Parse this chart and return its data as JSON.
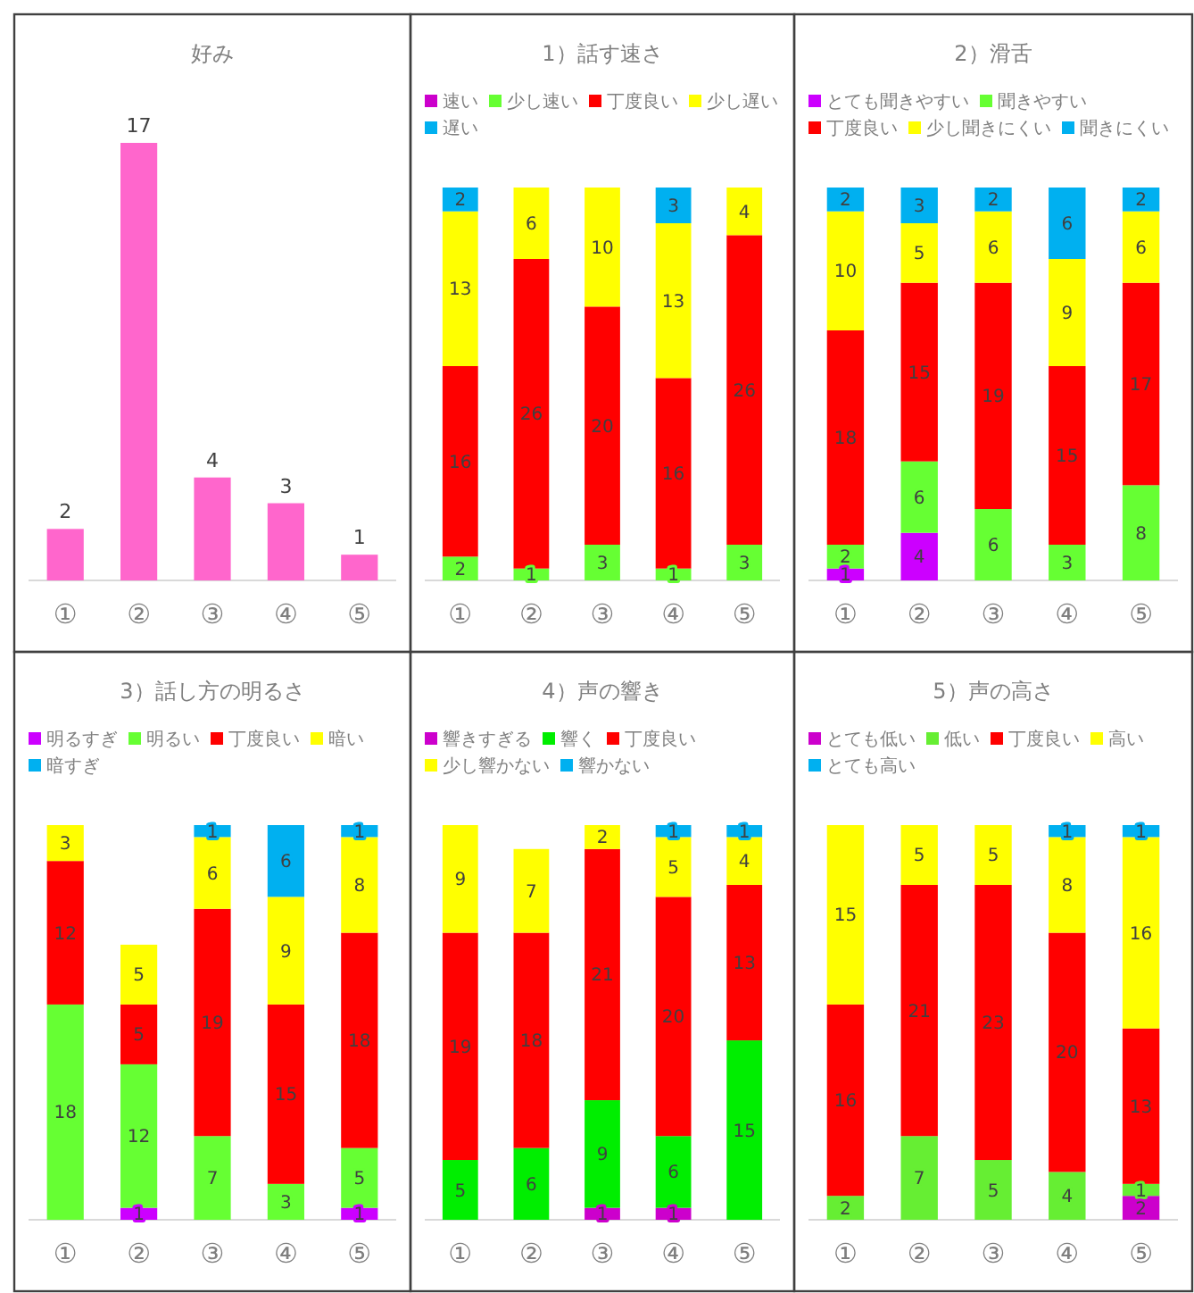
{
  "chart_data": [
    {
      "type": "bar",
      "title": "好み",
      "categories": [
        "①",
        "②",
        "③",
        "④",
        "⑤"
      ],
      "values": [
        2,
        17,
        4,
        3,
        1
      ],
      "color": "#ff66cc",
      "data_labels": true
    },
    {
      "type": "bar",
      "title": "1）話す速さ",
      "categories": [
        "①",
        "②",
        "③",
        "④",
        "⑤"
      ],
      "stacked": true,
      "data_labels": true,
      "legend": "top",
      "series": [
        {
          "name": "速い",
          "color": "#cc00cc",
          "values": [
            null,
            null,
            null,
            null,
            null
          ]
        },
        {
          "name": "少し速い",
          "color": "#66ff33",
          "values": [
            2,
            1,
            3,
            1,
            3
          ]
        },
        {
          "name": "丁度良い",
          "color": "#ff0000",
          "values": [
            16,
            26,
            20,
            16,
            26
          ]
        },
        {
          "name": "少し遅い",
          "color": "#ffff00",
          "values": [
            13,
            6,
            10,
            13,
            4
          ]
        },
        {
          "name": "遅い",
          "color": "#00b0f0",
          "values": [
            2,
            null,
            null,
            3,
            null
          ]
        }
      ]
    },
    {
      "type": "bar",
      "title": "2）滑舌",
      "categories": [
        "①",
        "②",
        "③",
        "④",
        "⑤"
      ],
      "stacked": true,
      "data_labels": true,
      "legend": "top",
      "series": [
        {
          "name": "とても聞きやすい",
          "color": "#cc00ff",
          "values": [
            1,
            4,
            null,
            null,
            null
          ]
        },
        {
          "name": "聞きやすい",
          "color": "#66ff33",
          "values": [
            2,
            6,
            6,
            3,
            8
          ]
        },
        {
          "name": "丁度良い",
          "color": "#ff0000",
          "values": [
            18,
            15,
            19,
            15,
            17
          ]
        },
        {
          "name": "少し聞きにくい",
          "color": "#ffff00",
          "values": [
            10,
            5,
            6,
            9,
            6
          ]
        },
        {
          "name": "聞きにくい",
          "color": "#00b0f0",
          "values": [
            2,
            3,
            2,
            6,
            2
          ]
        }
      ]
    },
    {
      "type": "bar",
      "title": "3）話し方の明るさ",
      "categories": [
        "①",
        "②",
        "③",
        "④",
        "⑤"
      ],
      "stacked": true,
      "data_labels": true,
      "legend": "top",
      "series": [
        {
          "name": "明るすぎ",
          "color": "#cc00ff",
          "values": [
            null,
            1,
            null,
            null,
            1
          ]
        },
        {
          "name": "明るい",
          "color": "#66ff33",
          "values": [
            18,
            12,
            7,
            3,
            5
          ]
        },
        {
          "name": "丁度良い",
          "color": "#ff0000",
          "values": [
            12,
            5,
            19,
            15,
            18
          ]
        },
        {
          "name": "暗い",
          "color": "#ffff00",
          "values": [
            3,
            5,
            6,
            9,
            8
          ]
        },
        {
          "name": "暗すぎ",
          "color": "#00b0f0",
          "values": [
            null,
            null,
            1,
            6,
            1
          ]
        }
      ]
    },
    {
      "type": "bar",
      "title": "4）声の響き",
      "categories": [
        "①",
        "②",
        "③",
        "④",
        "⑤"
      ],
      "stacked": true,
      "data_labels": true,
      "legend": "top",
      "series": [
        {
          "name": "響きすぎる",
          "color": "#cc00cc",
          "values": [
            null,
            null,
            1,
            1,
            null
          ]
        },
        {
          "name": "響く",
          "color": "#00ee00",
          "values": [
            5,
            6,
            9,
            6,
            15
          ]
        },
        {
          "name": "丁度良い",
          "color": "#ff0000",
          "values": [
            19,
            18,
            21,
            20,
            13
          ]
        },
        {
          "name": "少し響かない",
          "color": "#ffff00",
          "values": [
            9,
            7,
            2,
            5,
            4
          ]
        },
        {
          "name": "響かない",
          "color": "#00b0f0",
          "values": [
            null,
            null,
            null,
            1,
            1
          ]
        }
      ]
    },
    {
      "type": "bar",
      "title": "5）声の高さ",
      "categories": [
        "①",
        "②",
        "③",
        "④",
        "⑤"
      ],
      "stacked": true,
      "data_labels": true,
      "legend": "top",
      "series": [
        {
          "name": "とても低い",
          "color": "#cc00cc",
          "values": [
            null,
            null,
            null,
            null,
            2
          ]
        },
        {
          "name": "低い",
          "color": "#66ee33",
          "values": [
            2,
            7,
            5,
            4,
            1
          ]
        },
        {
          "name": "丁度良い",
          "color": "#ff0000",
          "values": [
            16,
            21,
            23,
            20,
            13
          ]
        },
        {
          "name": "高い",
          "color": "#ffff00",
          "values": [
            15,
            5,
            5,
            8,
            16
          ]
        },
        {
          "name": "とても高い",
          "color": "#00b0f0",
          "values": [
            null,
            null,
            null,
            1,
            1
          ]
        }
      ]
    }
  ]
}
